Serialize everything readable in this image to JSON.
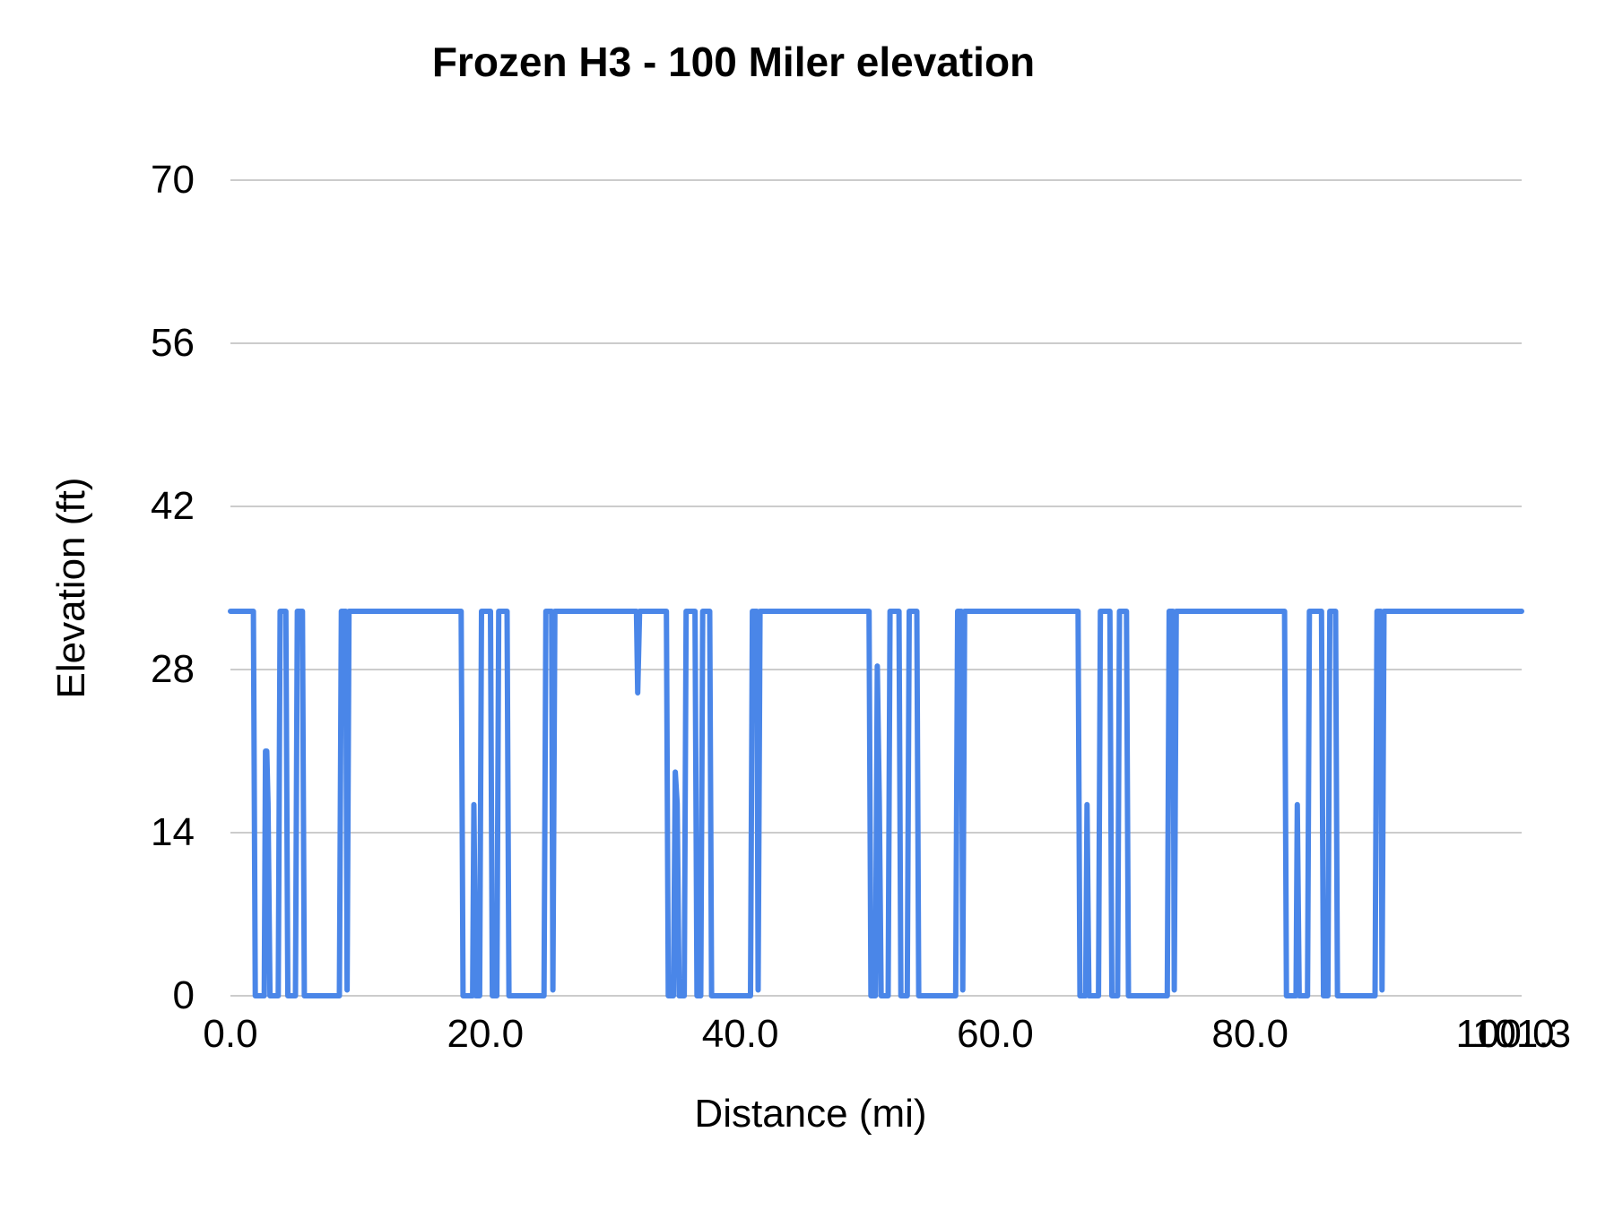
{
  "page": {
    "background_color": "#ffffff"
  },
  "chart_data": {
    "type": "line",
    "title": "Frozen H3 - 100 Miler elevation",
    "xlabel": "Distance (mi)",
    "ylabel": "Elevation (ft)",
    "xlim": [
      0,
      101.3
    ],
    "ylim": [
      0,
      70
    ],
    "grid": true,
    "legend": "none",
    "style": {
      "line_color": "#4a86e8",
      "line_width": 6,
      "grid_color": "#cccccc",
      "text_color": "#000000"
    },
    "x_ticks": [
      {
        "value": 0,
        "label": "0.0"
      },
      {
        "value": 20,
        "label": "20.0"
      },
      {
        "value": 40,
        "label": "40.0"
      },
      {
        "value": 60,
        "label": "60.0"
      },
      {
        "value": 80,
        "label": "80.0"
      },
      {
        "value": 100,
        "label": "100.0"
      },
      {
        "value": 101.3,
        "label": "101.3"
      }
    ],
    "y_ticks": [
      {
        "value": 0,
        "label": "0"
      },
      {
        "value": 14,
        "label": "14"
      },
      {
        "value": 28,
        "label": "28"
      },
      {
        "value": 42,
        "label": "42"
      },
      {
        "value": 56,
        "label": "56"
      },
      {
        "value": 70,
        "label": "70"
      }
    ],
    "series": [
      {
        "name": "Elevation",
        "points": [
          [
            0,
            33
          ],
          [
            1.8,
            33
          ],
          [
            1.95,
            0
          ],
          [
            2.65,
            0
          ],
          [
            2.75,
            21
          ],
          [
            2.85,
            21
          ],
          [
            2.95,
            16.5
          ],
          [
            3.1,
            0
          ],
          [
            3.75,
            0
          ],
          [
            3.9,
            33
          ],
          [
            4.35,
            33
          ],
          [
            4.5,
            0
          ],
          [
            5.1,
            0
          ],
          [
            5.25,
            33
          ],
          [
            5.65,
            33
          ],
          [
            5.8,
            0
          ],
          [
            8.55,
            0
          ],
          [
            8.7,
            33
          ],
          [
            9.05,
            33
          ],
          [
            9.15,
            0.5
          ],
          [
            9.3,
            33
          ],
          [
            18.1,
            33
          ],
          [
            18.25,
            0
          ],
          [
            19.0,
            0
          ],
          [
            19.1,
            16.4
          ],
          [
            19.25,
            0
          ],
          [
            19.55,
            0
          ],
          [
            19.7,
            33
          ],
          [
            20.4,
            33
          ],
          [
            20.55,
            0
          ],
          [
            20.9,
            0
          ],
          [
            21.05,
            33
          ],
          [
            21.7,
            33
          ],
          [
            21.85,
            0
          ],
          [
            24.6,
            0
          ],
          [
            24.75,
            33
          ],
          [
            25.2,
            33
          ],
          [
            25.3,
            0.5
          ],
          [
            25.45,
            33
          ],
          [
            31.85,
            33
          ],
          [
            31.95,
            26
          ],
          [
            32.1,
            33
          ],
          [
            34.2,
            33
          ],
          [
            34.35,
            0
          ],
          [
            34.75,
            0
          ],
          [
            34.9,
            19.2
          ],
          [
            35.05,
            16.5
          ],
          [
            35.2,
            0
          ],
          [
            35.6,
            0
          ],
          [
            35.75,
            33
          ],
          [
            36.45,
            33
          ],
          [
            36.6,
            0
          ],
          [
            36.9,
            0
          ],
          [
            37.05,
            33
          ],
          [
            37.6,
            33
          ],
          [
            37.75,
            0
          ],
          [
            40.8,
            0
          ],
          [
            40.95,
            33
          ],
          [
            41.3,
            33
          ],
          [
            41.4,
            0.5
          ],
          [
            41.55,
            33
          ],
          [
            50.1,
            33
          ],
          [
            50.25,
            0
          ],
          [
            50.6,
            0
          ],
          [
            50.75,
            28.3
          ],
          [
            50.9,
            16.8
          ],
          [
            51.05,
            0
          ],
          [
            51.6,
            0
          ],
          [
            51.75,
            33
          ],
          [
            52.45,
            33
          ],
          [
            52.6,
            0
          ],
          [
            53.1,
            0
          ],
          [
            53.25,
            33
          ],
          [
            53.85,
            33
          ],
          [
            54.0,
            0
          ],
          [
            56.9,
            0
          ],
          [
            57.05,
            33
          ],
          [
            57.35,
            33
          ],
          [
            57.45,
            0.5
          ],
          [
            57.6,
            33
          ],
          [
            66.5,
            33
          ],
          [
            66.65,
            0
          ],
          [
            67.1,
            0
          ],
          [
            67.2,
            16.4
          ],
          [
            67.35,
            0
          ],
          [
            68.1,
            0
          ],
          [
            68.25,
            33
          ],
          [
            69.0,
            33
          ],
          [
            69.15,
            0
          ],
          [
            69.6,
            0
          ],
          [
            69.75,
            33
          ],
          [
            70.3,
            33
          ],
          [
            70.45,
            0
          ],
          [
            73.5,
            0
          ],
          [
            73.65,
            33
          ],
          [
            73.95,
            33
          ],
          [
            74.05,
            0.5
          ],
          [
            74.2,
            33
          ],
          [
            82.7,
            33
          ],
          [
            82.85,
            0
          ],
          [
            83.6,
            0
          ],
          [
            83.7,
            16.4
          ],
          [
            83.85,
            0
          ],
          [
            84.5,
            0
          ],
          [
            84.65,
            33
          ],
          [
            85.6,
            33
          ],
          [
            85.75,
            0
          ],
          [
            86.1,
            0
          ],
          [
            86.25,
            33
          ],
          [
            86.7,
            33
          ],
          [
            86.85,
            0
          ],
          [
            89.8,
            0
          ],
          [
            89.95,
            33
          ],
          [
            90.25,
            33
          ],
          [
            90.35,
            0.5
          ],
          [
            90.5,
            33
          ],
          [
            101.3,
            33
          ]
        ]
      }
    ]
  }
}
